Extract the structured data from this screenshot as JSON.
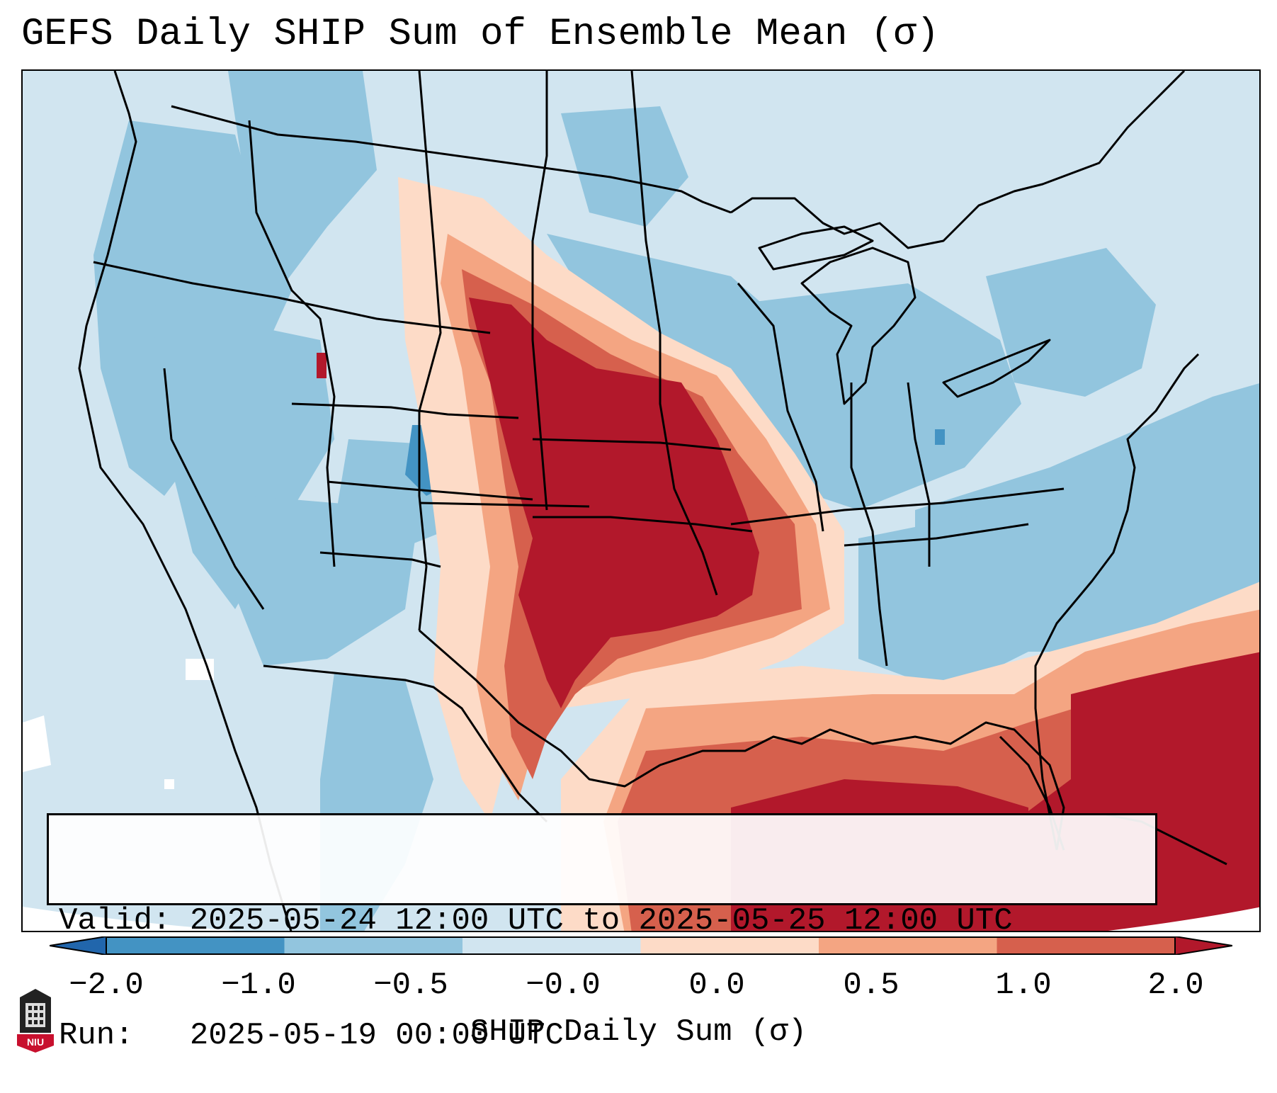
{
  "title": "GEFS Daily SHIP Sum of Ensemble Mean (σ)",
  "info": {
    "valid_label": "Valid:",
    "valid_text": "2025-05-24 12:00 UTC to 2025-05-25 12:00 UTC",
    "run_label": "Run:",
    "run_text": "2025-05-19 00:00 UTC"
  },
  "colorbar": {
    "label": "SHIP Daily Sum (σ)",
    "ticks": [
      "−2.0",
      "−1.0",
      "−0.5",
      "−0.0",
      "0.0",
      "0.5",
      "1.0",
      "2.0"
    ],
    "colors": [
      "#4393c3",
      "#92c5de",
      "#d1e5f0",
      "#fddbc7",
      "#f4a582",
      "#d6604d"
    ],
    "extend_low_color": "#2166ac",
    "extend_high_color": "#b2182b"
  },
  "palette": {
    "background": "#d1e5f0",
    "light_blue": "#92c5de",
    "blue": "#4393c3",
    "pale_red": "#fddbc7",
    "salmon": "#f4a582",
    "red": "#d6604d",
    "dark_red": "#b2182b",
    "white": "#ffffff"
  },
  "logo_text": "NIU"
}
